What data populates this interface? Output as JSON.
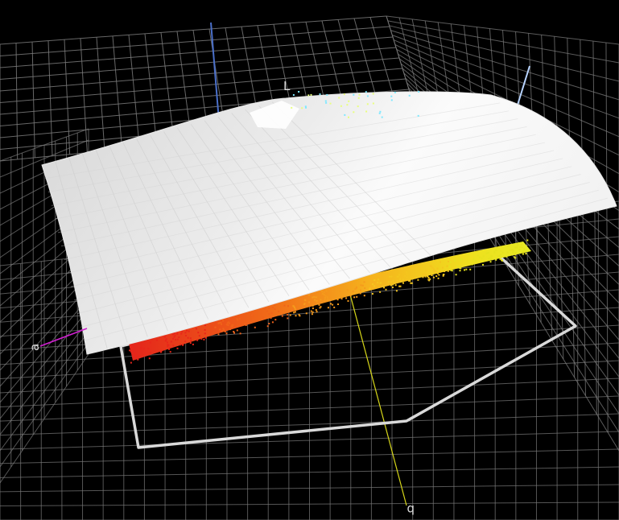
{
  "axes": {
    "L": {
      "label": "L",
      "color": "#6f8fd6"
    },
    "a": {
      "label": "a",
      "color": "#d21fd2"
    },
    "b": {
      "label": "b",
      "color": "#e6e61a"
    }
  },
  "colors": {
    "background": "#000000",
    "grid": "#7a7a7a",
    "surface_light": "#f6f6f6",
    "surface_shade": "#cdcdcd",
    "gamut_outline": "#d9d9d9",
    "point_cloud": [
      "#e8261a",
      "#f0631a",
      "#f59a1c",
      "#f4c61e",
      "#e6e21e"
    ]
  }
}
